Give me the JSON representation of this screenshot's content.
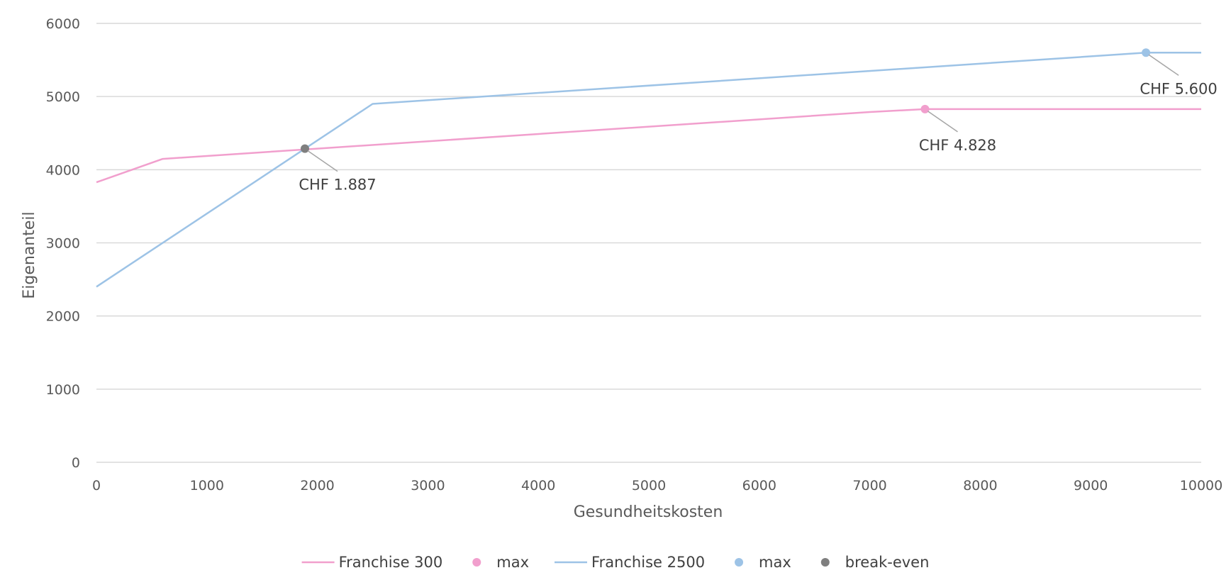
{
  "chart_data": {
    "type": "line",
    "title": "",
    "xlabel": "Gesundheitskosten",
    "ylabel": "Eigenanteil",
    "xlim": [
      0,
      10000
    ],
    "ylim": [
      0,
      6000
    ],
    "xticks": [
      0,
      1000,
      2000,
      3000,
      4000,
      5000,
      6000,
      7000,
      8000,
      9000,
      10000
    ],
    "yticks": [
      0,
      1000,
      2000,
      3000,
      4000,
      5000,
      6000
    ],
    "grid": "horizontal",
    "legend_position": "bottom",
    "colors": {
      "franchise300": "#f19fcd",
      "franchise2500": "#9dc3e6",
      "breakeven": "#7f7f7f",
      "grid": "#d9d9d9",
      "leader": "#a6a6a6"
    },
    "series": [
      {
        "name": "Franchise 300",
        "kind": "line",
        "color": "#f19fcd",
        "points": [
          [
            0,
            3828
          ],
          [
            600,
            4148
          ],
          [
            2000,
            4288
          ],
          [
            7000,
            4788
          ],
          [
            7500,
            4828
          ],
          [
            10000,
            4828
          ]
        ]
      },
      {
        "name": "max",
        "kind": "marker",
        "color": "#f19fcd",
        "points": [
          [
            7500,
            4828
          ]
        ]
      },
      {
        "name": "Franchise 2500",
        "kind": "line",
        "color": "#9dc3e6",
        "points": [
          [
            0,
            2400
          ],
          [
            2500,
            4900
          ],
          [
            9500,
            5600
          ],
          [
            10000,
            5600
          ]
        ]
      },
      {
        "name": "max",
        "kind": "marker",
        "color": "#9dc3e6",
        "points": [
          [
            9500,
            5600
          ]
        ]
      },
      {
        "name": "break-even",
        "kind": "marker",
        "color": "#7f7f7f",
        "points": [
          [
            1887,
            4288
          ]
        ]
      }
    ],
    "annotations": [
      {
        "text": "CHF 1.887",
        "x": 1887,
        "y": 4288,
        "placement": "below-right"
      },
      {
        "text": "CHF 4.828",
        "x": 7500,
        "y": 4828,
        "placement": "below-right"
      },
      {
        "text": "CHF 5.600",
        "x": 9500,
        "y": 5600,
        "placement": "below-right"
      }
    ],
    "legend": [
      {
        "label": "Franchise 300",
        "symbol": "line",
        "color": "#f19fcd"
      },
      {
        "label": "max",
        "symbol": "dot",
        "color": "#f19fcd"
      },
      {
        "label": "Franchise 2500",
        "symbol": "line",
        "color": "#9dc3e6"
      },
      {
        "label": "max",
        "symbol": "dot",
        "color": "#9dc3e6"
      },
      {
        "label": "break-even",
        "symbol": "dot",
        "color": "#7f7f7f"
      }
    ]
  }
}
